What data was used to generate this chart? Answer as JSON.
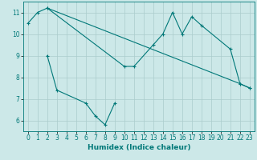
{
  "xlabel": "Humidex (Indice chaleur)",
  "bg_color": "#cce8e8",
  "grid_color": "#aacccc",
  "line_color": "#007878",
  "line1_x": [
    0,
    1,
    2,
    22,
    23
  ],
  "line1_y": [
    10.5,
    11.0,
    11.2,
    7.7,
    7.5
  ],
  "line2_x": [
    2,
    10,
    11,
    13,
    14,
    15,
    16,
    17,
    18,
    21,
    22,
    23
  ],
  "line2_y": [
    11.2,
    8.5,
    8.5,
    9.5,
    10.0,
    11.0,
    10.0,
    10.8,
    10.4,
    9.3,
    7.7,
    7.5
  ],
  "line3_x": [
    2,
    3,
    6,
    7,
    8,
    9
  ],
  "line3_y": [
    9.0,
    7.4,
    6.8,
    6.2,
    5.8,
    6.8
  ],
  "ylim": [
    5.5,
    11.5
  ],
  "xlim": [
    -0.5,
    23.5
  ],
  "yticks": [
    6,
    7,
    8,
    9,
    10,
    11
  ],
  "xticks": [
    0,
    1,
    2,
    3,
    4,
    5,
    6,
    7,
    8,
    9,
    10,
    11,
    12,
    13,
    14,
    15,
    16,
    17,
    18,
    19,
    20,
    21,
    22,
    23
  ],
  "xlabel_fontsize": 6.5,
  "tick_fontsize": 5.5
}
